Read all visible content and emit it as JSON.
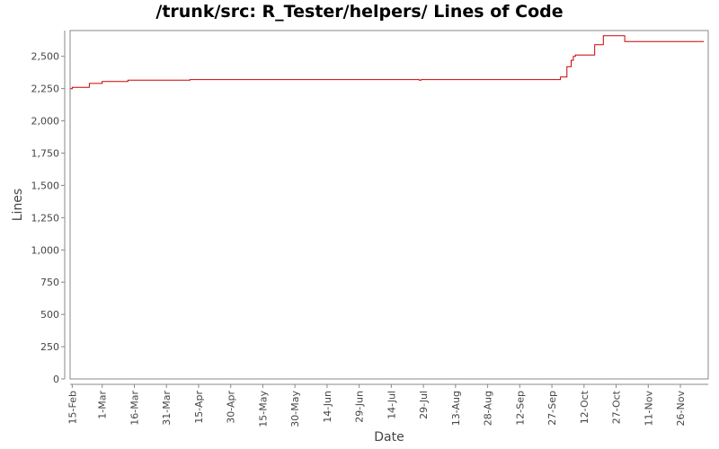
{
  "chart_data": {
    "type": "line",
    "title": "/trunk/src: R_Tester/helpers/ Lines of Code",
    "xlabel": "Date",
    "ylabel": "Lines",
    "ylim": [
      0,
      2700
    ],
    "xlim": [
      "2010-02-14",
      "2010-12-09"
    ],
    "grid": false,
    "legend": "none",
    "line_color": "#cc0000",
    "yticks": [
      0,
      250,
      500,
      750,
      1000,
      1250,
      1500,
      1750,
      2000,
      2250,
      2500
    ],
    "ytick_labels": [
      "0",
      "250",
      "500",
      "750",
      "1,000",
      "1,250",
      "1,500",
      "1,750",
      "2,000",
      "2,250",
      "2,500"
    ],
    "xticks": [
      "2010-02-15",
      "2010-03-01",
      "2010-03-16",
      "2010-03-31",
      "2010-04-15",
      "2010-04-30",
      "2010-05-15",
      "2010-05-30",
      "2010-06-14",
      "2010-06-29",
      "2010-07-14",
      "2010-07-29",
      "2010-08-13",
      "2010-08-28",
      "2010-09-12",
      "2010-09-27",
      "2010-10-12",
      "2010-10-27",
      "2010-11-11",
      "2010-11-26"
    ],
    "xtick_labels": [
      "15-Feb",
      "1-Mar",
      "16-Mar",
      "31-Mar",
      "15-Apr",
      "30-Apr",
      "15-May",
      "30-May",
      "14-Jun",
      "29-Jun",
      "14-Jul",
      "29-Jul",
      "13-Aug",
      "28-Aug",
      "12-Sep",
      "27-Sep",
      "12-Oct",
      "27-Oct",
      "11-Nov",
      "26-Nov"
    ],
    "series": [
      {
        "step": true,
        "x": [
          "2010-02-14",
          "2010-02-15",
          "2010-02-23",
          "2010-03-01",
          "2010-03-13",
          "2010-04-11",
          "2010-07-27",
          "2010-07-28",
          "2010-10-01",
          "2010-10-04",
          "2010-10-06",
          "2010-10-07",
          "2010-10-08",
          "2010-10-17",
          "2010-10-21",
          "2010-10-31",
          "2010-12-07"
        ],
        "y": [
          2250,
          2260,
          2290,
          2305,
          2315,
          2320,
          2315,
          2320,
          2340,
          2420,
          2470,
          2500,
          2510,
          2590,
          2660,
          2615,
          2615
        ]
      }
    ]
  }
}
